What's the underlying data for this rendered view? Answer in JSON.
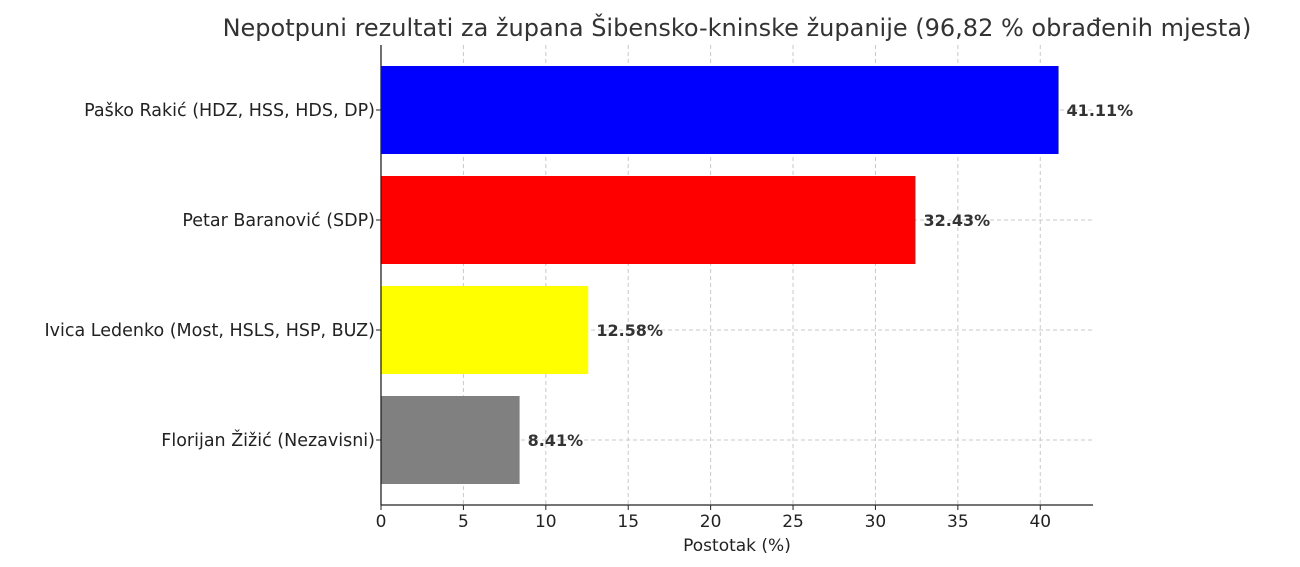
{
  "chart_data": {
    "type": "bar",
    "orientation": "horizontal",
    "title": "Nepotpuni rezultati za župana Šibensko-kninske županije (96,82 % obrađenih mjesta)",
    "xlabel": "Postotak (%)",
    "ylabel": "",
    "xlim": [
      0,
      43.2
    ],
    "xticks": [
      0,
      5,
      10,
      15,
      20,
      25,
      30,
      35,
      40
    ],
    "grid": true,
    "categories": [
      "Paško Rakić (HDZ, HSS, HDS, DP)",
      "Petar Baranović (SDP)",
      "Ivica Ledenko (Most, HSLS, HSP, BUZ)",
      "Florijan Žižić (Nezavisni)"
    ],
    "values": [
      41.11,
      32.43,
      12.58,
      8.41
    ],
    "value_labels": [
      "41.11%",
      "32.43%",
      "12.58%",
      "8.41%"
    ],
    "colors": [
      "#0000ff",
      "#ff0000",
      "#ffff00",
      "#808080"
    ]
  }
}
